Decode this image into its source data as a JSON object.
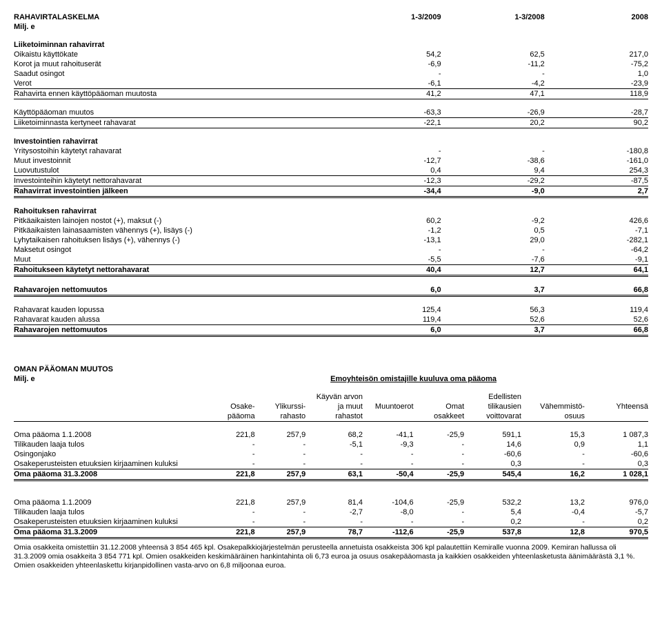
{
  "cashflow": {
    "title": "RAHAVIRTALASKELMA",
    "unit": "Milj. e",
    "col1": "1-3/2009",
    "col2": "1-3/2008",
    "col3": "2008",
    "sections": {
      "op_header": "Liiketoiminnan rahavirrat",
      "rows_op": [
        {
          "l": "Oikaistu käyttökate",
          "a": "54,2",
          "b": "62,5",
          "c": "217,0"
        },
        {
          "l": "Korot ja muut rahoituserät",
          "a": "-6,9",
          "b": "-11,2",
          "c": "-75,2"
        },
        {
          "l": "Saadut osingot",
          "a": "-",
          "b": "-",
          "c": "1,0"
        },
        {
          "l": "Verot",
          "a": "-6,1",
          "b": "-4,2",
          "c": "-23,9"
        }
      ],
      "op_sub1": {
        "l": "Rahavirta ennen käyttöpääoman muutosta",
        "a": "41,2",
        "b": "47,1",
        "c": "118,9"
      },
      "rows_op2": [
        {
          "l": "Käyttöpääoman muutos",
          "a": "-63,3",
          "b": "-26,9",
          "c": "-28,7"
        }
      ],
      "op_sub2": {
        "l": "Liiketoiminnasta kertyneet rahavarat",
        "a": "-22,1",
        "b": "20,2",
        "c": "90,2"
      },
      "inv_header": "Investointien rahavirrat",
      "rows_inv": [
        {
          "l": "Yritysostoihin käytetyt rahavarat",
          "a": "-",
          "b": "-",
          "c": "-180,8"
        },
        {
          "l": "Muut investoinnit",
          "a": "-12,7",
          "b": "-38,6",
          "c": "-161,0"
        },
        {
          "l": "Luovutustulot",
          "a": "0,4",
          "b": "9,4",
          "c": "254,3"
        }
      ],
      "inv_sub1": {
        "l": "Investointeihin käytetyt nettorahavarat",
        "a": "-12,3",
        "b": "-29,2",
        "c": "-87,5"
      },
      "inv_sub2": {
        "l": "Rahavirrat investointien jälkeen",
        "a": "-34,4",
        "b": "-9,0",
        "c": "2,7"
      },
      "fin_header": "Rahoituksen rahavirrat",
      "rows_fin": [
        {
          "l": "Pitkäaikaisten lainojen nostot (+), maksut (-)",
          "a": "60,2",
          "b": "-9,2",
          "c": "426,6"
        },
        {
          "l": "Pitkäaikaisten lainasaamisten vähennys (+), lisäys (-)",
          "a": "-1,2",
          "b": "0,5",
          "c": "-7,1"
        },
        {
          "l": "Lyhytaikaisen rahoituksen lisäys (+), vähennys (-)",
          "a": "-13,1",
          "b": "29,0",
          "c": "-282,1"
        },
        {
          "l": "Maksetut osingot",
          "a": "-",
          "b": "-",
          "c": "-64,2"
        },
        {
          "l": "Muut",
          "a": "-5,5",
          "b": "-7,6",
          "c": "-9,1"
        }
      ],
      "fin_sub": {
        "l": "Rahoitukseen käytetyt nettorahavarat",
        "a": "40,4",
        "b": "12,7",
        "c": "64,1"
      },
      "net1": {
        "l": "Rahavarojen nettomuutos",
        "a": "6,0",
        "b": "3,7",
        "c": "66,8"
      },
      "end": {
        "l": "Rahavarat kauden lopussa",
        "a": "125,4",
        "b": "56,3",
        "c": "119,4"
      },
      "beg": {
        "l": "Rahavarat kauden alussa",
        "a": "119,4",
        "b": "52,6",
        "c": "52,6"
      },
      "net2": {
        "l": "Rahavarojen nettomuutos",
        "a": "6,0",
        "b": "3,7",
        "c": "66,8"
      }
    }
  },
  "equity": {
    "title": "OMAN PÄÄOMAN MUUTOS",
    "unit": "Milj. e",
    "subtitle": "Emoyhteisön omistajille kuuluva oma pääoma",
    "head": {
      "c1a": "Osake-",
      "c1b": "pääoma",
      "c2a": "Ylikurssi-",
      "c2b": "rahasto",
      "c3a": "Käyvän arvon",
      "c3b": "ja muut",
      "c3c": "rahastot",
      "c4": "Muuntoerot",
      "c5a": "Omat",
      "c5b": "osakkeet",
      "c6a": "Edellisten",
      "c6b": "tilikausien",
      "c6c": "voittovarat",
      "c7a": "Vähemmistö-",
      "c7b": "osuus",
      "c8": "Yhteensä"
    },
    "g1": [
      {
        "l": "Oma pääoma 1.1.2008",
        "v": [
          "221,8",
          "257,9",
          "68,2",
          "-41,1",
          "-25,9",
          "591,1",
          "15,3",
          "1 087,3"
        ]
      },
      {
        "l": "Tilikauden laaja tulos",
        "v": [
          "-",
          "-",
          "-5,1",
          "-9,3",
          "-",
          "14,6",
          "0,9",
          "1,1"
        ]
      },
      {
        "l": "Osingonjako",
        "v": [
          "-",
          "-",
          "-",
          "-",
          "-",
          "-60,6",
          "-",
          "-60,6"
        ]
      },
      {
        "l": "Osakeperusteisten etuuksien kirjaaminen kuluksi",
        "v": [
          "-",
          "-",
          "-",
          "-",
          "-",
          "0,3",
          "-",
          "0,3"
        ]
      }
    ],
    "g1tot": {
      "l": "Oma pääoma 31.3.2008",
      "v": [
        "221,8",
        "257,9",
        "63,1",
        "-50,4",
        "-25,9",
        "545,4",
        "16,2",
        "1 028,1"
      ]
    },
    "g2": [
      {
        "l": "Oma pääoma 1.1.2009",
        "v": [
          "221,8",
          "257,9",
          "81,4",
          "-104,6",
          "-25,9",
          "532,2",
          "13,2",
          "976,0"
        ]
      },
      {
        "l": "Tilikauden laaja tulos",
        "v": [
          "-",
          "-",
          "-2,7",
          "-8,0",
          "-",
          "5,4",
          "-0,4",
          "-5,7"
        ]
      },
      {
        "l": "Osakeperusteisten etuuksien kirjaaminen kuluksi",
        "v": [
          "-",
          "-",
          "-",
          "-",
          "-",
          "0,2",
          "-",
          "0,2"
        ]
      }
    ],
    "g2tot": {
      "l": "Oma pääoma 31.3.2009",
      "v": [
        "221,8",
        "257,9",
        "78,7",
        "-112,6",
        "-25,9",
        "537,8",
        "12,8",
        "970,5"
      ]
    }
  },
  "footnote": "Omia osakkeita omistettiin 31.12.2008 yhteensä 3 854 465 kpl. Osakepalkkiojärjestelmän perusteella annetuista osakkeista 306 kpl palautettiin Kemiralle vuonna 2009. Kemiran hallussa oli 31.3.2009 omia osakkeita 3 854 771 kpl. Omien osakkeiden keskimääräinen hankintahinta oli 6,73 euroa ja osuus osakepääomasta ja kaikkien osakkeiden yhteenlasketusta äänimäärästä 3,1 %. Omien osakkeiden yhteenlaskettu kirjanpidollinen vasta-arvo on 6,8 miljoonaa euroa."
}
